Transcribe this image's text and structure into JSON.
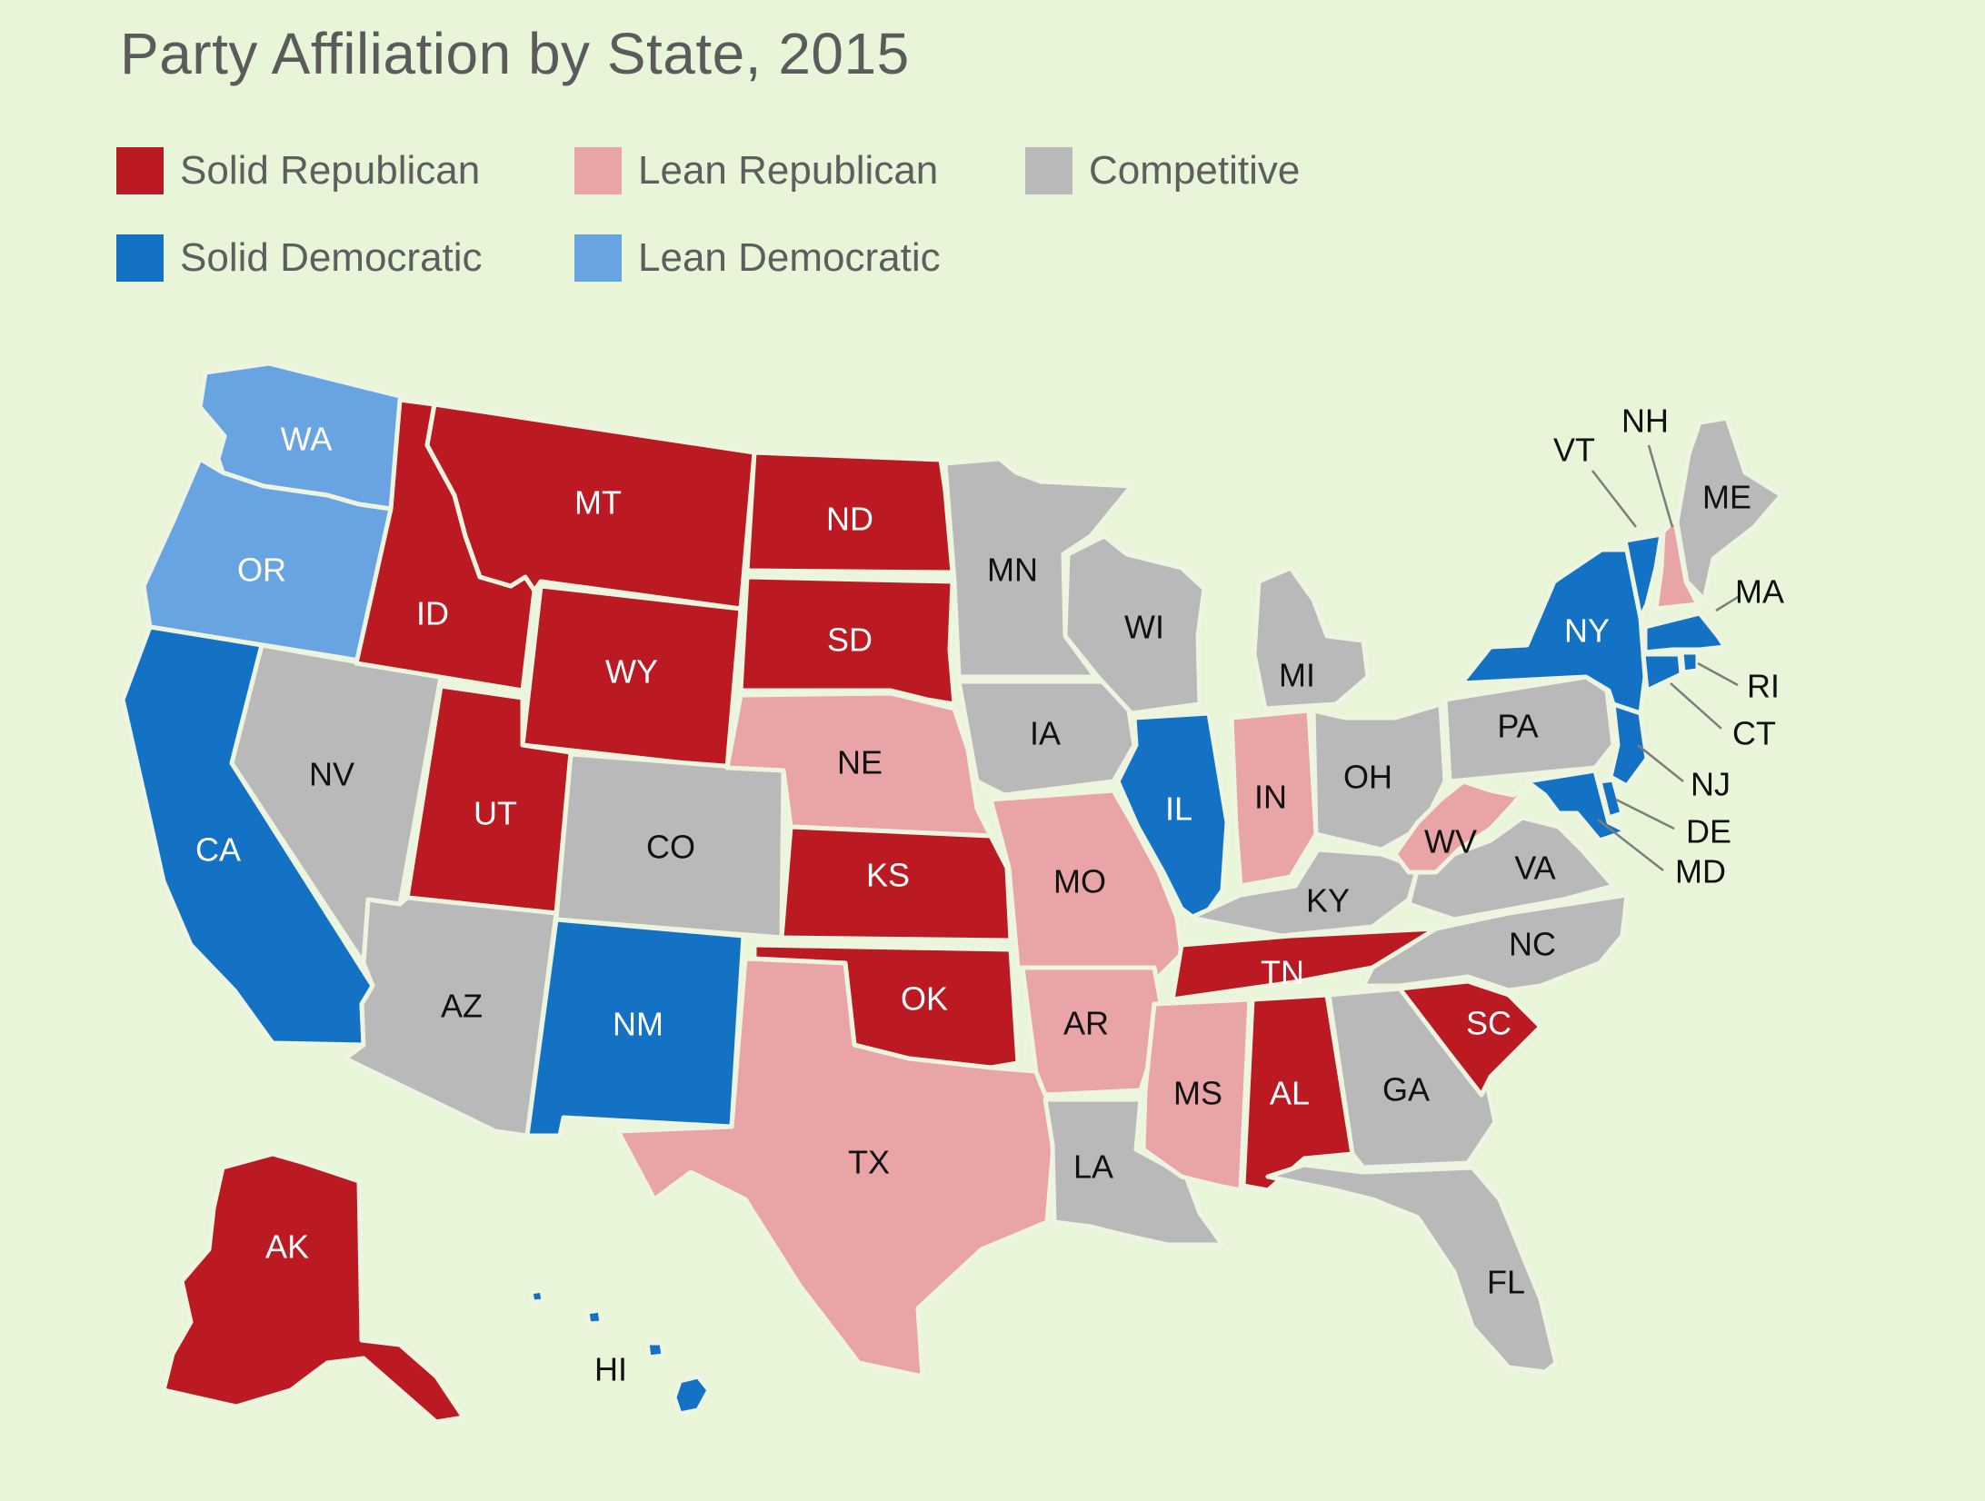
{
  "title": "Party Affiliation by State, 2015",
  "legend": [
    {
      "key": "solid_rep",
      "label": "Solid Republican",
      "color": "#bb1a22"
    },
    {
      "key": "lean_rep",
      "label": "Lean Republican",
      "color": "#e8a4a6"
    },
    {
      "key": "competitive",
      "label": "Competitive",
      "color": "#b9b9b9"
    },
    {
      "key": "solid_dem",
      "label": "Solid Democratic",
      "color": "#1372c3"
    },
    {
      "key": "lean_dem",
      "label": "Lean Democratic",
      "color": "#68a4e1"
    }
  ],
  "label_colors": {
    "dark_fill_text": "#ffffff",
    "light_fill_text": "#111111"
  },
  "states": [
    {
      "code": "WA",
      "label": "WA",
      "category": "lean_dem"
    },
    {
      "code": "OR",
      "label": "OR",
      "category": "lean_dem"
    },
    {
      "code": "CA",
      "label": "CA",
      "category": "solid_dem"
    },
    {
      "code": "NV",
      "label": "NV",
      "category": "competitive"
    },
    {
      "code": "ID",
      "label": "ID",
      "category": "solid_rep"
    },
    {
      "code": "MT",
      "label": "MT",
      "category": "solid_rep"
    },
    {
      "code": "WY",
      "label": "WY",
      "category": "solid_rep"
    },
    {
      "code": "UT",
      "label": "UT",
      "category": "solid_rep"
    },
    {
      "code": "AZ",
      "label": "AZ",
      "category": "competitive"
    },
    {
      "code": "CO",
      "label": "CO",
      "category": "competitive"
    },
    {
      "code": "NM",
      "label": "NM",
      "category": "solid_dem"
    },
    {
      "code": "ND",
      "label": "ND",
      "category": "solid_rep"
    },
    {
      "code": "SD",
      "label": "SD",
      "category": "solid_rep"
    },
    {
      "code": "NE",
      "label": "NE",
      "category": "lean_rep"
    },
    {
      "code": "KS",
      "label": "KS",
      "category": "solid_rep"
    },
    {
      "code": "OK",
      "label": "OK",
      "category": "solid_rep"
    },
    {
      "code": "TX",
      "label": "TX",
      "category": "lean_rep"
    },
    {
      "code": "MN",
      "label": "MN",
      "category": "competitive"
    },
    {
      "code": "IA",
      "label": "IA",
      "category": "competitive"
    },
    {
      "code": "MO",
      "label": "MO",
      "category": "lean_rep"
    },
    {
      "code": "AR",
      "label": "AR",
      "category": "lean_rep"
    },
    {
      "code": "LA",
      "label": "LA",
      "category": "competitive"
    },
    {
      "code": "WI",
      "label": "WI",
      "category": "competitive"
    },
    {
      "code": "IL",
      "label": "IL",
      "category": "solid_dem"
    },
    {
      "code": "MI",
      "label": "MI",
      "category": "competitive"
    },
    {
      "code": "IN",
      "label": "IN",
      "category": "lean_rep"
    },
    {
      "code": "OH",
      "label": "OH",
      "category": "competitive"
    },
    {
      "code": "KY",
      "label": "KY",
      "category": "competitive"
    },
    {
      "code": "TN",
      "label": "TN",
      "category": "solid_rep"
    },
    {
      "code": "MS",
      "label": "MS",
      "category": "lean_rep"
    },
    {
      "code": "AL",
      "label": "AL",
      "category": "solid_rep"
    },
    {
      "code": "GA",
      "label": "GA",
      "category": "competitive"
    },
    {
      "code": "FL",
      "label": "FL",
      "category": "competitive"
    },
    {
      "code": "SC",
      "label": "SC",
      "category": "solid_rep"
    },
    {
      "code": "NC",
      "label": "NC",
      "category": "competitive"
    },
    {
      "code": "VA",
      "label": "VA",
      "category": "competitive"
    },
    {
      "code": "WV",
      "label": "WV",
      "category": "lean_rep"
    },
    {
      "code": "PA",
      "label": "PA",
      "category": "competitive"
    },
    {
      "code": "NY",
      "label": "NY",
      "category": "solid_dem"
    },
    {
      "code": "VT",
      "label": "VT",
      "category": "solid_dem"
    },
    {
      "code": "NH",
      "label": "NH",
      "category": "lean_rep"
    },
    {
      "code": "ME",
      "label": "ME",
      "category": "competitive"
    },
    {
      "code": "MA",
      "label": "MA",
      "category": "solid_dem"
    },
    {
      "code": "RI",
      "label": "RI",
      "category": "solid_dem"
    },
    {
      "code": "CT",
      "label": "CT",
      "category": "solid_dem"
    },
    {
      "code": "NJ",
      "label": "NJ",
      "category": "solid_dem"
    },
    {
      "code": "DE",
      "label": "DE",
      "category": "solid_dem"
    },
    {
      "code": "MD",
      "label": "MD",
      "category": "solid_dem"
    },
    {
      "code": "AK",
      "label": "AK",
      "category": "solid_rep"
    },
    {
      "code": "HI",
      "label": "HI",
      "category": "solid_dem"
    }
  ]
}
